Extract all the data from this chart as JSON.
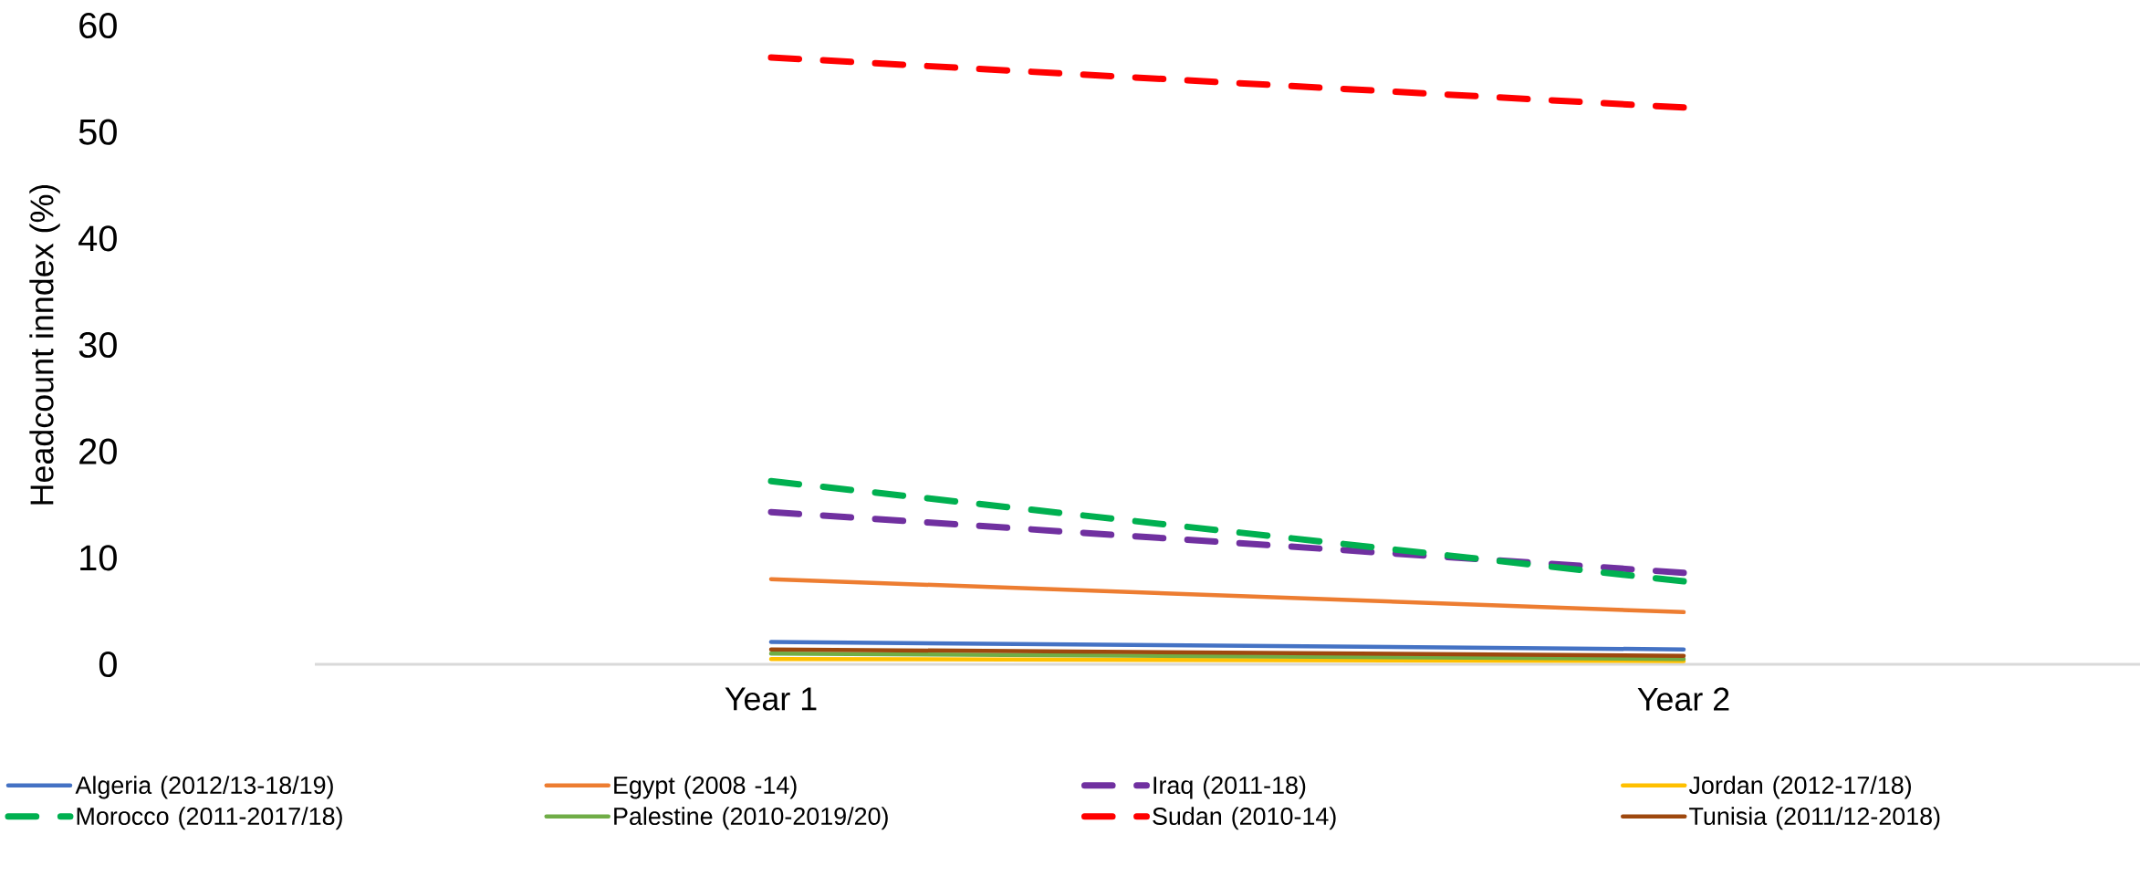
{
  "chart_data": {
    "type": "line",
    "ylabel": "Headcount inndex (%)",
    "categories": [
      "Year 1",
      "Year 2"
    ],
    "ylim": [
      0,
      60
    ],
    "yticks": [
      0,
      10,
      20,
      30,
      40,
      50,
      60
    ],
    "legend": "bottom",
    "series": [
      {
        "name": "Algeria (2012/13-18/19)",
        "color": "#4472c4",
        "line_style": "solid",
        "values": [
          2.1,
          1.4
        ]
      },
      {
        "name": "Egypt (2008 -14)",
        "color": "#ed7d31",
        "line_style": "solid",
        "values": [
          8.0,
          4.9
        ]
      },
      {
        "name": "Iraq (2011-18)",
        "color": "#7030a0",
        "line_style": "dashed",
        "values": [
          14.3,
          8.6
        ]
      },
      {
        "name": "Jordan (2012-17/18)",
        "color": "#ffc000",
        "line_style": "solid",
        "values": [
          0.5,
          0.3
        ]
      },
      {
        "name": "Morocco (2011-2017/18)",
        "color": "#00b050",
        "line_style": "dashed",
        "values": [
          17.2,
          7.8
        ]
      },
      {
        "name": "Palestine (2010-2019/20)",
        "color": "#70ad47",
        "line_style": "solid",
        "values": [
          1.0,
          0.5
        ]
      },
      {
        "name": "Sudan (2010-14)",
        "color": "#ff0000",
        "line_style": "dashed",
        "values": [
          57.0,
          52.3
        ]
      },
      {
        "name": "Tunisia (2011/12-2018)",
        "color": "#9e480e",
        "line_style": "solid",
        "values": [
          1.4,
          0.8
        ]
      }
    ]
  }
}
